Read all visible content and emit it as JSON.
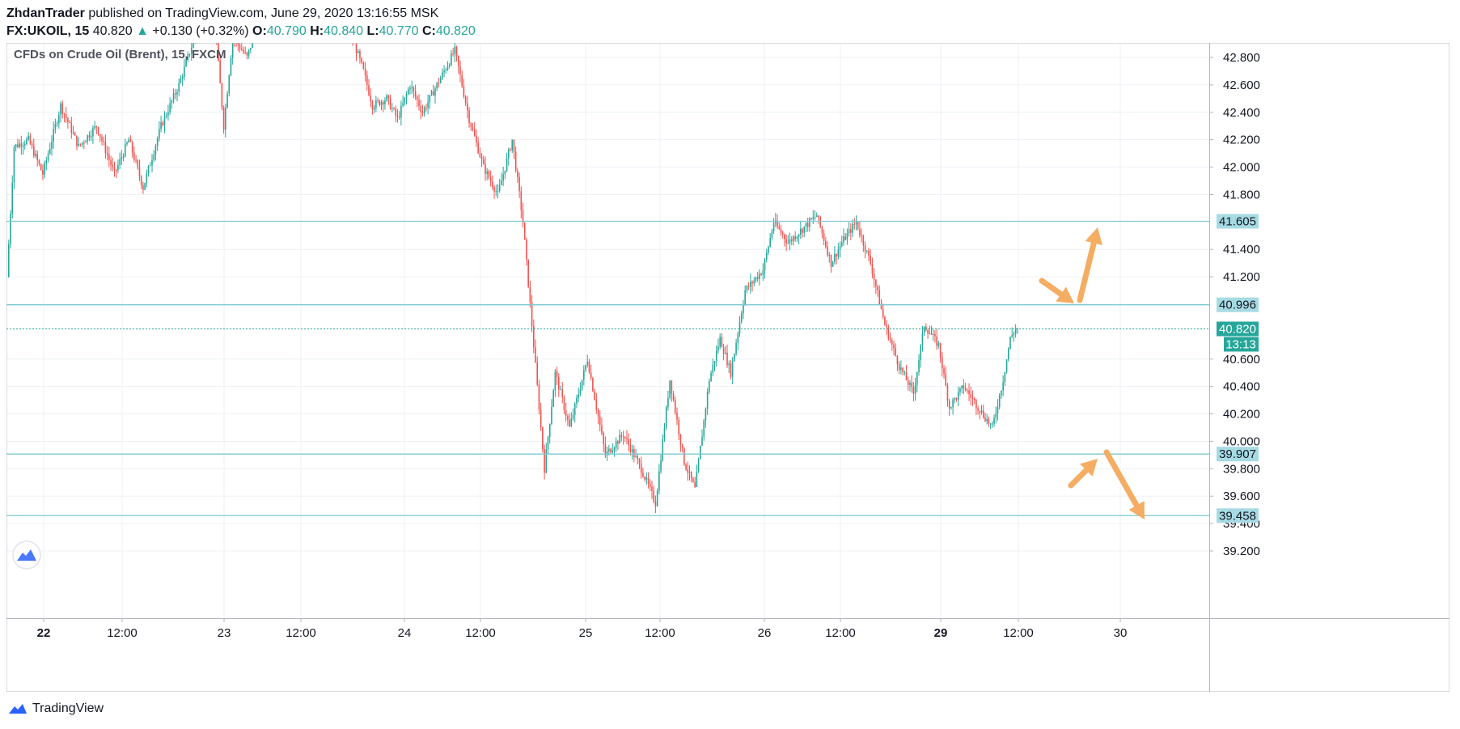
{
  "header": {
    "author": "ZhdanTrader",
    "published": "published on TradingView.com, June 29, 2020 13:16:55 MSK"
  },
  "ohlc": {
    "symbol": "FX:UKOIL, 15",
    "last": "40.820",
    "arrow": "▲",
    "change": "+0.130 (+0.32%)",
    "o_label": "O:",
    "o": "40.790",
    "h_label": "H:",
    "h": "40.840",
    "l_label": "L:",
    "l": "40.770",
    "c_label": "C:",
    "c": "40.820"
  },
  "legend": {
    "title": "CFDs on Crude Oil (Brent), 15, FXCM"
  },
  "footer": {
    "brand": "TradingView",
    "logo_icon": "tradingview-logo-icon"
  },
  "colors": {
    "up": "#26a69a",
    "down": "#ef5350",
    "hline": "#7ec8d3",
    "label_bg": "#a7dbe4",
    "last_bg": "#26a69a",
    "arrow": "#f4ad62",
    "grid": "#edf1f5"
  },
  "chart_data": {
    "type": "candlestick",
    "title": "CFDs on Crude Oil (Brent), 15, FXCM",
    "x_ticks": [
      {
        "label": "22",
        "bold": true
      },
      {
        "label": "12:00"
      },
      {
        "label": "23"
      },
      {
        "label": "12:00"
      },
      {
        "label": "24"
      },
      {
        "label": "12:00"
      },
      {
        "label": "25"
      },
      {
        "label": "12:00"
      },
      {
        "label": "26"
      },
      {
        "label": "12:00"
      },
      {
        "label": "29",
        "bold": true
      },
      {
        "label": "12:00"
      },
      {
        "label": "30"
      }
    ],
    "y_ticks": [
      "42.800",
      "42.600",
      "42.400",
      "42.200",
      "42.000",
      "41.800",
      "41.400",
      "41.200",
      "40.600",
      "40.400",
      "40.200",
      "40.000",
      "39.800",
      "39.600",
      "39.400",
      "39.200"
    ],
    "ylim": [
      39.0,
      43.05
    ],
    "horizontal_levels": [
      {
        "value": 41.605,
        "label": "41.605"
      },
      {
        "value": 40.996,
        "label": "40.996"
      },
      {
        "value": 39.907,
        "label": "39.907"
      },
      {
        "value": 39.458,
        "label": "39.458"
      }
    ],
    "last_price": {
      "value": 40.82,
      "label": "40.820",
      "countdown": "13:13"
    },
    "path_anchors": [
      {
        "t": 0,
        "p": 41.2
      },
      {
        "t": 4,
        "p": 42.15
      },
      {
        "t": 12,
        "p": 42.2
      },
      {
        "t": 20,
        "p": 41.95
      },
      {
        "t": 30,
        "p": 42.45
      },
      {
        "t": 40,
        "p": 42.15
      },
      {
        "t": 50,
        "p": 42.3
      },
      {
        "t": 60,
        "p": 41.95
      },
      {
        "t": 68,
        "p": 42.2
      },
      {
        "t": 76,
        "p": 41.85
      },
      {
        "t": 86,
        "p": 42.3
      },
      {
        "t": 96,
        "p": 42.6
      },
      {
        "t": 106,
        "p": 43.0
      },
      {
        "t": 116,
        "p": 43.05
      },
      {
        "t": 121,
        "p": 42.3
      },
      {
        "t": 126,
        "p": 42.95
      },
      {
        "t": 134,
        "p": 42.8
      },
      {
        "t": 140,
        "p": 43.05
      },
      {
        "t": 150,
        "p": 43.05
      },
      {
        "t": 160,
        "p": 43.05
      },
      {
        "t": 170,
        "p": 43.05
      },
      {
        "t": 180,
        "p": 43.05
      },
      {
        "t": 190,
        "p": 43.05
      },
      {
        "t": 199,
        "p": 42.7
      },
      {
        "t": 204,
        "p": 42.45
      },
      {
        "t": 212,
        "p": 42.5
      },
      {
        "t": 218,
        "p": 42.35
      },
      {
        "t": 225,
        "p": 42.6
      },
      {
        "t": 232,
        "p": 42.4
      },
      {
        "t": 242,
        "p": 42.65
      },
      {
        "t": 250,
        "p": 42.85
      },
      {
        "t": 258,
        "p": 42.35
      },
      {
        "t": 266,
        "p": 42.0
      },
      {
        "t": 274,
        "p": 41.8
      },
      {
        "t": 282,
        "p": 42.2
      },
      {
        "t": 288,
        "p": 41.6
      },
      {
        "t": 294,
        "p": 40.7
      },
      {
        "t": 300,
        "p": 39.8
      },
      {
        "t": 306,
        "p": 40.5
      },
      {
        "t": 314,
        "p": 40.1
      },
      {
        "t": 324,
        "p": 40.6
      },
      {
        "t": 334,
        "p": 39.9
      },
      {
        "t": 344,
        "p": 40.05
      },
      {
        "t": 354,
        "p": 39.8
      },
      {
        "t": 362,
        "p": 39.55
      },
      {
        "t": 370,
        "p": 40.45
      },
      {
        "t": 378,
        "p": 39.85
      },
      {
        "t": 384,
        "p": 39.65
      },
      {
        "t": 392,
        "p": 40.45
      },
      {
        "t": 398,
        "p": 40.75
      },
      {
        "t": 404,
        "p": 40.5
      },
      {
        "t": 412,
        "p": 41.1
      },
      {
        "t": 422,
        "p": 41.25
      },
      {
        "t": 428,
        "p": 41.6
      },
      {
        "t": 436,
        "p": 41.45
      },
      {
        "t": 444,
        "p": 41.55
      },
      {
        "t": 452,
        "p": 41.65
      },
      {
        "t": 460,
        "p": 41.3
      },
      {
        "t": 466,
        "p": 41.45
      },
      {
        "t": 474,
        "p": 41.6
      },
      {
        "t": 482,
        "p": 41.3
      },
      {
        "t": 490,
        "p": 40.85
      },
      {
        "t": 498,
        "p": 40.55
      },
      {
        "t": 506,
        "p": 40.35
      },
      {
        "t": 512,
        "p": 40.85
      },
      {
        "t": 520,
        "p": 40.7
      },
      {
        "t": 526,
        "p": 40.25
      },
      {
        "t": 534,
        "p": 40.4
      },
      {
        "t": 542,
        "p": 40.25
      },
      {
        "t": 550,
        "p": 40.1
      },
      {
        "t": 556,
        "p": 40.45
      },
      {
        "t": 560,
        "p": 40.75
      },
      {
        "t": 563,
        "p": 40.82
      }
    ]
  }
}
